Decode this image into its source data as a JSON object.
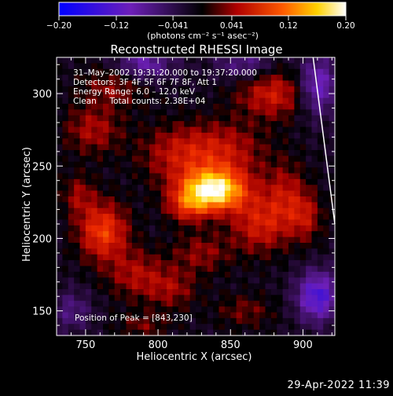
{
  "chart_data": {
    "type": "heatmap",
    "title": "Reconstructed RHESSI Image",
    "colorbar": {
      "min": -0.2,
      "max": 0.2,
      "tick_labels": [
        "−0.20",
        "−0.12",
        "−0.041",
        "0.041",
        "0.12",
        "0.20"
      ],
      "tick_values": [
        -0.2,
        -0.12,
        -0.041,
        0.041,
        0.12,
        0.2
      ],
      "unit_label": "(photons cm⁻² s⁻¹ asec⁻²)"
    },
    "xlabel": "Heliocentric X (arcsec)",
    "ylabel": "Heliocentric Y (arcsec)",
    "xlim": [
      730,
      922
    ],
    "ylim": [
      133,
      325
    ],
    "xticks": [
      750,
      800,
      850,
      900
    ],
    "yticks": [
      150,
      200,
      250,
      300
    ],
    "annotations": [
      "31–May–2002 19:31:20.000 to 19:37:20.000",
      "Detectors: 3F 4F 5F 6F 7F 8F, Att 1",
      "Energy Range: 6.0 – 12.0 keV",
      "Clean     Total counts: 2.38E+04"
    ],
    "peak_label": "Position of Peak = [843,230]",
    "peak": [
      843,
      230
    ],
    "limb_line": [
      [
        907,
        325
      ],
      [
        922,
        210
      ]
    ],
    "sources": [
      {
        "x": 838,
        "y": 233,
        "sx": 16,
        "sy": 10,
        "amp": 0.21
      },
      {
        "x": 820,
        "y": 222,
        "sx": 10,
        "sy": 8,
        "amp": 0.07
      },
      {
        "x": 812,
        "y": 258,
        "sx": 18,
        "sy": 14,
        "amp": 0.06
      },
      {
        "x": 845,
        "y": 260,
        "sx": 20,
        "sy": 14,
        "amp": 0.07
      },
      {
        "x": 762,
        "y": 205,
        "sx": 12,
        "sy": 14,
        "amp": 0.11
      },
      {
        "x": 785,
        "y": 175,
        "sx": 14,
        "sy": 12,
        "amp": 0.06
      },
      {
        "x": 810,
        "y": 165,
        "sx": 12,
        "sy": 10,
        "amp": 0.05
      },
      {
        "x": 870,
        "y": 210,
        "sx": 14,
        "sy": 14,
        "amp": 0.08
      },
      {
        "x": 888,
        "y": 230,
        "sx": 10,
        "sy": 16,
        "amp": 0.06
      },
      {
        "x": 880,
        "y": 300,
        "sx": 18,
        "sy": 12,
        "amp": 0.08
      },
      {
        "x": 902,
        "y": 215,
        "sx": 8,
        "sy": 12,
        "amp": 0.06
      },
      {
        "x": 755,
        "y": 275,
        "sx": 14,
        "sy": 12,
        "amp": 0.06
      },
      {
        "x": 770,
        "y": 305,
        "sx": 16,
        "sy": 10,
        "amp": 0.05
      },
      {
        "x": 745,
        "y": 230,
        "sx": 8,
        "sy": 10,
        "amp": 0.05
      },
      {
        "x": 830,
        "y": 190,
        "sx": 14,
        "sy": 10,
        "amp": 0.05
      },
      {
        "x": 790,
        "y": 140,
        "sx": 12,
        "sy": 6,
        "amp": 0.04
      },
      {
        "x": 860,
        "y": 150,
        "sx": 14,
        "sy": 8,
        "amp": 0.04
      },
      {
        "x": 910,
        "y": 160,
        "sx": 10,
        "sy": 12,
        "amp": -0.12
      },
      {
        "x": 790,
        "y": 320,
        "sx": 14,
        "sy": 8,
        "amp": -0.08
      },
      {
        "x": 860,
        "y": 320,
        "sx": 14,
        "sy": 8,
        "amp": -0.06
      },
      {
        "x": 910,
        "y": 305,
        "sx": 10,
        "sy": 14,
        "amp": -0.1
      },
      {
        "x": 740,
        "y": 150,
        "sx": 10,
        "sy": 10,
        "amp": -0.05
      }
    ]
  },
  "footer": {
    "timestamp": "29-Apr-2022 11:39"
  }
}
